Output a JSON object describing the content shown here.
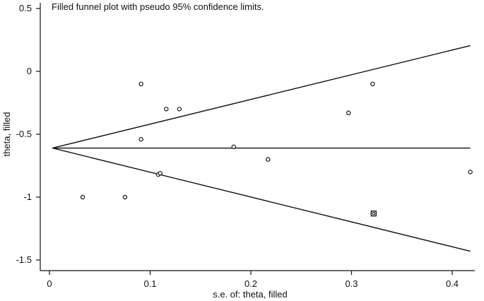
{
  "chart_data": {
    "type": "scatter",
    "title": "Filled funnel plot with pseudo 95% confidence limits.",
    "xlabel": "s.e. of: theta, filled",
    "ylabel": "theta, filled",
    "xlim": [
      -0.01,
      0.425
    ],
    "ylim": [
      -1.55,
      0.55
    ],
    "xticks": [
      0,
      0.1,
      0.2,
      0.3,
      0.4
    ],
    "xtick_labels": [
      "0",
      "0.1",
      "0.2",
      "0.3",
      "0.4"
    ],
    "yticks": [
      0.5,
      0,
      -0.5,
      -1,
      -1.5
    ],
    "ytick_labels": [
      "0.5",
      "0",
      "-0.5",
      "-1",
      "-1.5"
    ],
    "grid": false,
    "pooled_estimate": -0.61,
    "pseudo_ci_lines": {
      "upper": [
        [
          0.003,
          -0.61
        ],
        [
          0.418,
          0.205
        ]
      ],
      "lower": [
        [
          0.003,
          -0.61
        ],
        [
          0.418,
          -1.43
        ]
      ],
      "center": [
        [
          0.003,
          -0.61
        ],
        [
          0.418,
          -0.61
        ]
      ]
    },
    "series": [
      {
        "marker": "circle",
        "points": [
          {
            "x": 0.033,
            "y": -1.0
          },
          {
            "x": 0.075,
            "y": -1.0
          },
          {
            "x": 0.091,
            "y": -0.1
          },
          {
            "x": 0.091,
            "y": -0.54
          },
          {
            "x": 0.108,
            "y": -0.82
          },
          {
            "x": 0.11,
            "y": -0.81
          },
          {
            "x": 0.116,
            "y": -0.3
          },
          {
            "x": 0.129,
            "y": -0.3
          },
          {
            "x": 0.183,
            "y": -0.6
          },
          {
            "x": 0.217,
            "y": -0.7
          },
          {
            "x": 0.297,
            "y": -0.33
          },
          {
            "x": 0.321,
            "y": -0.1
          },
          {
            "x": 0.418,
            "y": -0.8
          }
        ]
      },
      {
        "marker": "square",
        "points": [
          {
            "x": 0.322,
            "y": -1.13
          }
        ]
      }
    ]
  }
}
